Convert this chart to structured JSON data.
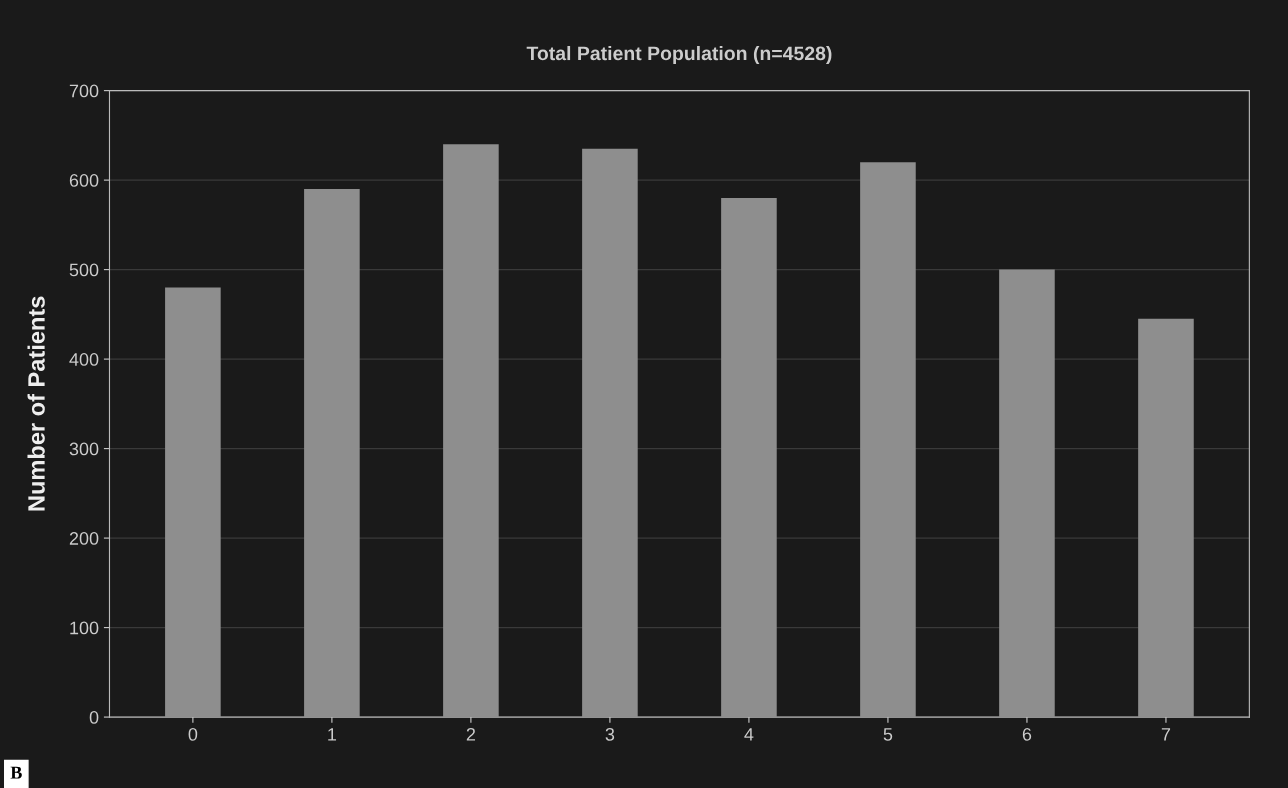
{
  "chart_data": {
    "type": "bar",
    "title": "Total Patient Population (n=4528)",
    "ylabel": "Number of Patients",
    "categories": [
      "0",
      "1",
      "2",
      "3",
      "4",
      "5",
      "6",
      "7"
    ],
    "values": [
      480,
      590,
      640,
      635,
      580,
      620,
      500,
      445
    ],
    "color": "#8e8e8e",
    "ylim": [
      0,
      700
    ],
    "yticks": [
      0,
      100,
      200,
      300,
      400,
      500,
      600,
      700
    ],
    "grid": "y",
    "annotations": [
      "B"
    ]
  }
}
